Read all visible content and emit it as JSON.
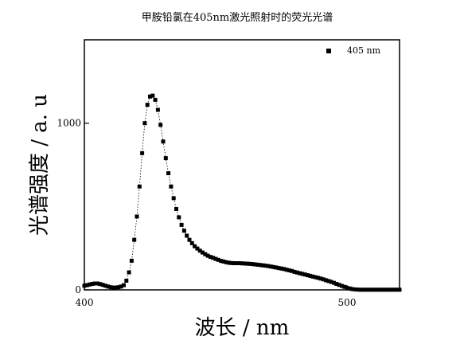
{
  "chart_data": {
    "type": "scatter",
    "title": "甲胺铅氯在405nm激光照射时的荧光光谱",
    "xlabel": "波长 / nm",
    "ylabel": "光谱强度 / a. u",
    "xlim": [
      400,
      520
    ],
    "ylim": [
      0,
      1500
    ],
    "xticks": [
      "400",
      "500"
    ],
    "yticks": [
      "0",
      "1000"
    ],
    "legend_position": "top-right",
    "grid": false,
    "colors": {
      "series": "#000000",
      "axes": "#000000"
    },
    "series": [
      {
        "name": "405 nm",
        "marker": "square",
        "connector": "dotted",
        "x": [
          400,
          401,
          402,
          403,
          404,
          405,
          406,
          407,
          408,
          409,
          410,
          411,
          412,
          413,
          414,
          415,
          416,
          417,
          418,
          419,
          420,
          421,
          422,
          423,
          424,
          425,
          426,
          427,
          428,
          429,
          430,
          431,
          432,
          433,
          434,
          435,
          436,
          437,
          438,
          439,
          440,
          441,
          442,
          443,
          444,
          445,
          446,
          447,
          448,
          449,
          450,
          451,
          452,
          453,
          454,
          455,
          456,
          457,
          458,
          459,
          460,
          461,
          462,
          463,
          464,
          465,
          466,
          467,
          468,
          469,
          470,
          471,
          472,
          473,
          474,
          475,
          476,
          477,
          478,
          479,
          480,
          481,
          482,
          483,
          484,
          485,
          486,
          487,
          488,
          489,
          490,
          491,
          492,
          493,
          494,
          495,
          496,
          497,
          498,
          499,
          500,
          501,
          502,
          503,
          504,
          505,
          506,
          507,
          508,
          509,
          510,
          511,
          512,
          513,
          514,
          515,
          516,
          517,
          518,
          519,
          520
        ],
        "y": [
          25,
          28,
          32,
          36,
          38,
          38,
          35,
          30,
          25,
          20,
          16,
          14,
          14,
          16,
          20,
          28,
          55,
          105,
          175,
          300,
          440,
          620,
          820,
          1000,
          1110,
          1160,
          1165,
          1140,
          1080,
          990,
          890,
          790,
          700,
          620,
          550,
          485,
          435,
          390,
          355,
          325,
          300,
          280,
          262,
          248,
          235,
          224,
          214,
          205,
          198,
          192,
          186,
          180,
          174,
          170,
          166,
          163,
          161,
          160,
          160,
          160,
          159,
          158,
          157,
          156,
          155,
          153,
          151,
          149,
          147,
          145,
          143,
          140,
          137,
          134,
          131,
          128,
          125,
          121,
          117,
          113,
          108,
          104,
          100,
          96,
          92,
          88,
          84,
          80,
          76,
          72,
          68,
          63,
          58,
          53,
          48,
          42,
          36,
          30,
          24,
          18,
          12,
          8,
          5,
          3,
          2,
          1,
          1,
          1,
          1,
          1,
          1,
          1,
          1,
          1,
          1,
          1,
          1,
          1,
          1,
          1,
          1
        ]
      }
    ]
  }
}
